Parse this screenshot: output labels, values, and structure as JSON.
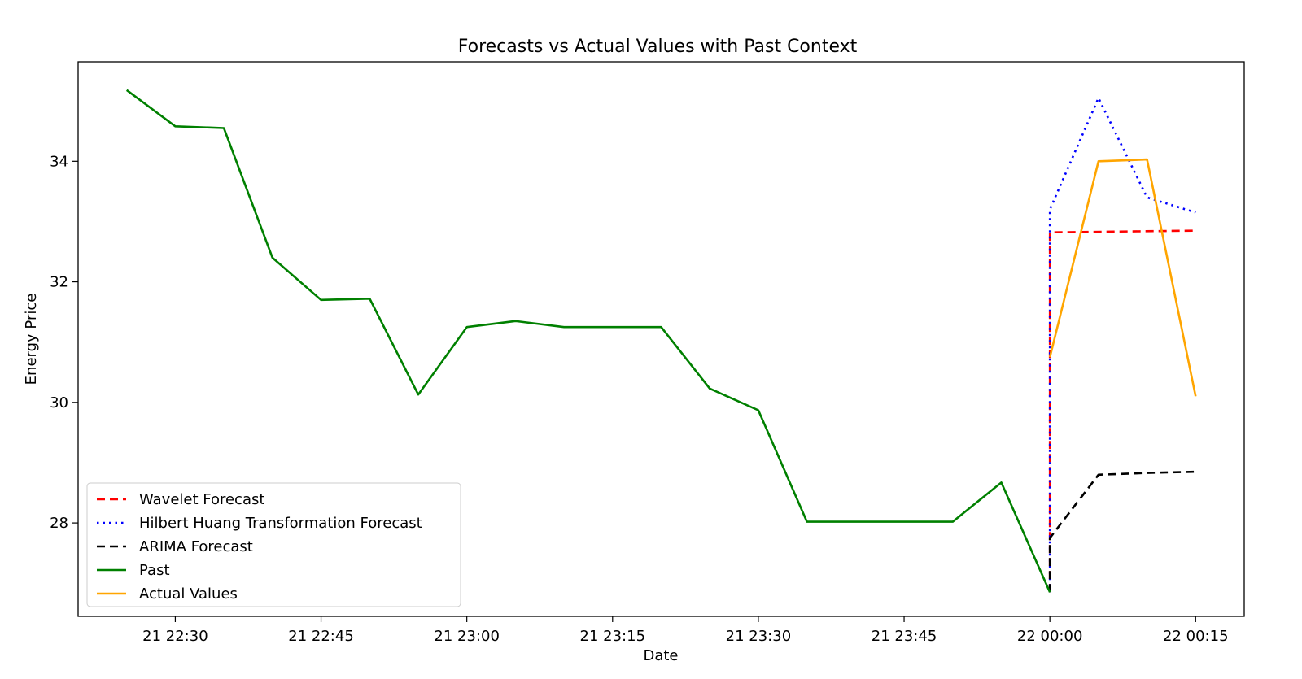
{
  "chart_data": {
    "type": "line",
    "title": "Forecasts vs Actual Values with Past Context",
    "xlabel": "Date",
    "ylabel": "Energy Price",
    "grid": false,
    "legend_position": "lower-left",
    "x_axis": {
      "type": "datetime",
      "range": [
        "2024-01-21 22:20",
        "2024-01-22 00:20"
      ],
      "ticks": [
        {
          "value": "2024-01-21 22:30",
          "label": "21 22:30"
        },
        {
          "value": "2024-01-21 22:45",
          "label": "21 22:45"
        },
        {
          "value": "2024-01-21 23:00",
          "label": "21 23:00"
        },
        {
          "value": "2024-01-21 23:15",
          "label": "21 23:15"
        },
        {
          "value": "2024-01-21 23:30",
          "label": "21 23:30"
        },
        {
          "value": "2024-01-21 23:45",
          "label": "21 23:45"
        },
        {
          "value": "2024-01-22 00:00",
          "label": "22 00:00"
        },
        {
          "value": "2024-01-22 00:15",
          "label": "22 00:15"
        }
      ]
    },
    "y_axis": {
      "range": [
        26.45,
        35.65
      ],
      "ticks": [
        {
          "value": 28,
          "label": "28"
        },
        {
          "value": 30,
          "label": "30"
        },
        {
          "value": 32,
          "label": "32"
        },
        {
          "value": 34,
          "label": "34"
        }
      ]
    },
    "series": [
      {
        "name": "Wavelet Forecast",
        "color": "#ff0000",
        "dash": "dashed",
        "x": [
          "2024-01-22 00:00",
          "2024-01-22 00:00",
          "2024-01-22 00:15"
        ],
        "y": [
          26.85,
          32.82,
          32.85
        ]
      },
      {
        "name": "Hilbert Huang Transformation Forecast",
        "color": "#0000ff",
        "dash": "dotted",
        "x": [
          "2024-01-22 00:00",
          "2024-01-22 00:00",
          "2024-01-22 00:05",
          "2024-01-22 00:10",
          "2024-01-22 00:15"
        ],
        "y": [
          26.85,
          33.2,
          35.05,
          33.4,
          33.15
        ]
      },
      {
        "name": "ARIMA Forecast",
        "color": "#000000",
        "dash": "dashed",
        "x": [
          "2024-01-22 00:00",
          "2024-01-22 00:00",
          "2024-01-22 00:05",
          "2024-01-22 00:10",
          "2024-01-22 00:15"
        ],
        "y": [
          26.85,
          27.75,
          28.8,
          28.83,
          28.85
        ]
      },
      {
        "name": "Past",
        "color": "#008000",
        "dash": "solid",
        "x": [
          "2024-01-21 22:25",
          "2024-01-21 22:30",
          "2024-01-21 22:35",
          "2024-01-21 22:40",
          "2024-01-21 22:45",
          "2024-01-21 22:50",
          "2024-01-21 22:55",
          "2024-01-21 23:00",
          "2024-01-21 23:05",
          "2024-01-21 23:10",
          "2024-01-21 23:15",
          "2024-01-21 23:20",
          "2024-01-21 23:25",
          "2024-01-21 23:30",
          "2024-01-21 23:35",
          "2024-01-21 23:40",
          "2024-01-21 23:45",
          "2024-01-21 23:50",
          "2024-01-21 23:55",
          "2024-01-22 00:00"
        ],
        "y": [
          35.18,
          34.58,
          34.55,
          32.4,
          31.7,
          31.72,
          30.13,
          31.25,
          31.35,
          31.25,
          31.25,
          31.25,
          30.23,
          29.87,
          28.02,
          28.02,
          28.02,
          28.02,
          28.67,
          26.85
        ]
      },
      {
        "name": "Actual Values",
        "color": "#ffa500",
        "dash": "solid",
        "x": [
          "2024-01-22 00:00",
          "2024-01-22 00:05",
          "2024-01-22 00:10",
          "2024-01-22 00:15"
        ],
        "y": [
          30.75,
          34.0,
          34.03,
          30.1
        ]
      }
    ]
  }
}
